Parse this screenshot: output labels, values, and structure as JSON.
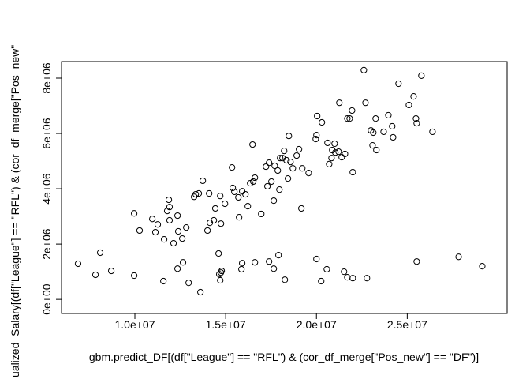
{
  "chart_data": {
    "type": "scatter",
    "xlabel": "gbm.predict_DF[(df[\"League\"] == \"RFL\") & (cor_df_merge[\"Pos_new\"] == \"DF\")]",
    "ylabel": "ualized_Salary[(df[\"League\"] == \"RFL\") & (cor_df_merge[\"Pos_new\"",
    "x": [
      6870000,
      7830000,
      8090000,
      8700000,
      9960000,
      11570000,
      12350000,
      12650000,
      12960000,
      13610000,
      14610000,
      14700000,
      14740000,
      14780000,
      14650000,
      15870000,
      15910000,
      16610000,
      17390000,
      17650000,
      17910000,
      18260000,
      20000000,
      20260000,
      20570000,
      21520000,
      21700000,
      22000000,
      22780000,
      25520000,
      27830000,
      29130000,
      9960000,
      10260000,
      10960000,
      11130000,
      11260000,
      11610000,
      11780000,
      11870000,
      11910000,
      11910000,
      12130000,
      12350000,
      12390000,
      12610000,
      12830000,
      13260000,
      13350000,
      13520000,
      13740000,
      14000000,
      14090000,
      14130000,
      14350000,
      14430000,
      14700000,
      14740000,
      14960000,
      15350000,
      15390000,
      15480000,
      15700000,
      15740000,
      15910000,
      16090000,
      16220000,
      16350000,
      16520000,
      16480000,
      16610000,
      16960000,
      17220000,
      17300000,
      17390000,
      17520000,
      17650000,
      17700000,
      17870000,
      17960000,
      18000000,
      18130000,
      18220000,
      18350000,
      18430000,
      18480000,
      18570000,
      18700000,
      18910000,
      19040000,
      19170000,
      19220000,
      19570000,
      19960000,
      20000000,
      20040000,
      20300000,
      20610000,
      20700000,
      20830000,
      20870000,
      21000000,
      21040000,
      21220000,
      21260000,
      21390000,
      21570000,
      21700000,
      21830000,
      21960000,
      22000000,
      22700000,
      23000000,
      23090000,
      23130000,
      23260000,
      23300000,
      23700000,
      23960000,
      24170000,
      24220000,
      24520000,
      25090000,
      25350000,
      25480000,
      25520000,
      25780000,
      26390000,
      22610000
    ],
    "values": [
      1290000,
      890000,
      1690000,
      1030000,
      860000,
      660000,
      1110000,
      1340000,
      600000,
      260000,
      1660000,
      690000,
      970000,
      1030000,
      910000,
      1090000,
      1310000,
      1340000,
      1370000,
      1110000,
      1600000,
      710000,
      1460000,
      660000,
      1090000,
      1000000,
      800000,
      770000,
      770000,
      1370000,
      1540000,
      1200000,
      3110000,
      2490000,
      2910000,
      2430000,
      2710000,
      2170000,
      3200000,
      3600000,
      3340000,
      2860000,
      2030000,
      3030000,
      2460000,
      2200000,
      2600000,
      3710000,
      3800000,
      3830000,
      4290000,
      2490000,
      3830000,
      2770000,
      2860000,
      3290000,
      3740000,
      2740000,
      3460000,
      4770000,
      4030000,
      3890000,
      3690000,
      2970000,
      3910000,
      3800000,
      3370000,
      4200000,
      4260000,
      5600000,
      4400000,
      3090000,
      4800000,
      4090000,
      4940000,
      4260000,
      3570000,
      4830000,
      4660000,
      3970000,
      5110000,
      5110000,
      5370000,
      5030000,
      4370000,
      5910000,
      4970000,
      4740000,
      5200000,
      5430000,
      3290000,
      4740000,
      4570000,
      5800000,
      5940000,
      6630000,
      6400000,
      5660000,
      4890000,
      5110000,
      5400000,
      5630000,
      5310000,
      5340000,
      7110000,
      5140000,
      5260000,
      6540000,
      6540000,
      6830000,
      4600000,
      7110000,
      6110000,
      5570000,
      6030000,
      6540000,
      5400000,
      6060000,
      6660000,
      6260000,
      5860000,
      7800000,
      7030000,
      7340000,
      6540000,
      6370000,
      8090000,
      6060000,
      8290000
    ],
    "xlim": [
      5960000,
      30500000
    ],
    "ylim": [
      -510000,
      8600000
    ],
    "xticks": [
      {
        "value": 10000000,
        "label": "1.0e+07"
      },
      {
        "value": 15000000,
        "label": "1.5e+07"
      },
      {
        "value": 20000000,
        "label": "2.0e+07"
      },
      {
        "value": 25000000,
        "label": "2.5e+07"
      }
    ],
    "yticks": [
      {
        "value": 0,
        "label": "0e+00"
      },
      {
        "value": 2000000,
        "label": "2e+06"
      },
      {
        "value": 4000000,
        "label": "4e+06"
      },
      {
        "value": 6000000,
        "label": "6e+06"
      },
      {
        "value": 8000000,
        "label": "8e+06"
      }
    ],
    "color": "#000000"
  }
}
